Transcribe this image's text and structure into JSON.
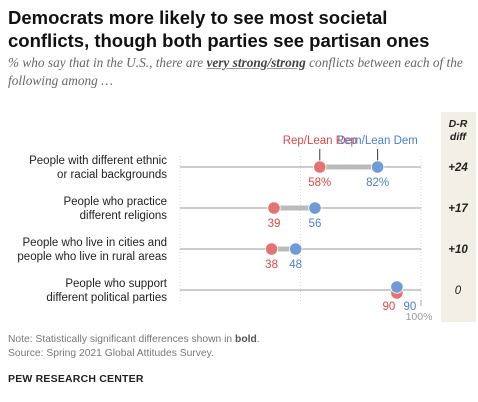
{
  "title": "Democrats more likely to see most societal conflicts, though both parties see partisan ones",
  "subtitle": {
    "prefix": "% who say that in the U.S., there are ",
    "emphasis": "very strong/strong",
    "suffix": " conflicts between each of the following among …"
  },
  "notes": {
    "note_prefix": "Note: Statistically significant differences shown in ",
    "note_bold": "bold",
    "note_suffix": ".",
    "source": "Source: Spring 2021 Global Attitudes Survey.",
    "org": "PEW RESEARCH CENTER"
  },
  "colors": {
    "rep": "#e27474",
    "dem": "#6f9cd6",
    "rep_text": "#d5484a",
    "dem_text": "#4f7fbf",
    "diff_bg": "#f2efe6",
    "gridline": "#999999",
    "connector": "#bbbbbb"
  },
  "chart_data": {
    "type": "dot",
    "xlim": [
      0,
      100
    ],
    "x_tick_label": "100%",
    "legend": {
      "rep": "Rep/Lean Rep",
      "dem": "Dem/Lean Dem"
    },
    "diff_header": [
      "D-R",
      "diff"
    ],
    "categories": [
      [
        "People with different ethnic",
        "or racial backgrounds"
      ],
      [
        "People who practice",
        "different religions"
      ],
      [
        "People who live in cities and",
        "people who live in rural areas"
      ],
      [
        "People who support",
        "different political parties"
      ]
    ],
    "series": [
      {
        "name": "Rep/Lean Rep",
        "values": [
          58,
          39,
          38,
          90
        ],
        "labels": [
          "58%",
          "39",
          "38",
          "90"
        ]
      },
      {
        "name": "Dem/Lean Dem",
        "values": [
          82,
          56,
          48,
          90
        ],
        "labels": [
          "82%",
          "56",
          "48",
          "90"
        ]
      }
    ],
    "diff": [
      "+24",
      "+17",
      "+10",
      "0"
    ],
    "diff_significant": [
      true,
      true,
      true,
      false
    ]
  }
}
